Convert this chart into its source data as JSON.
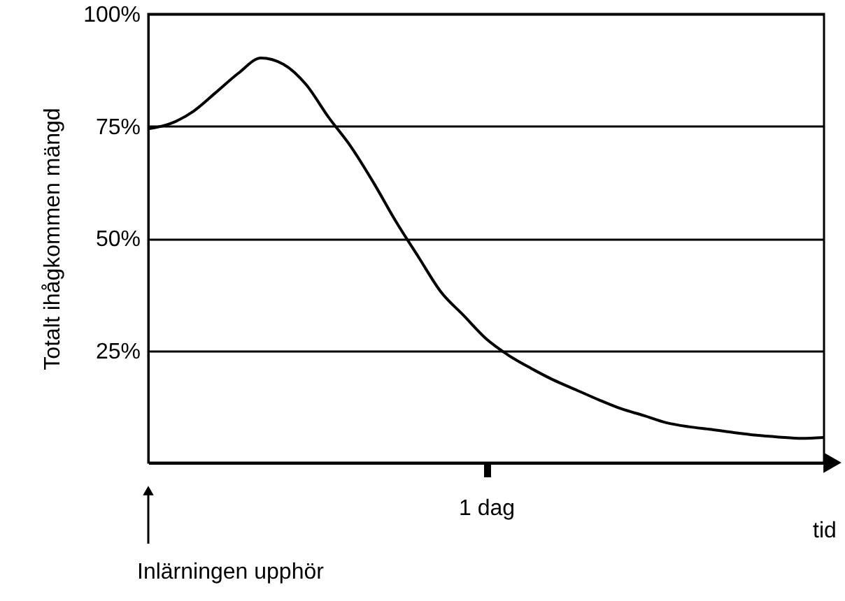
{
  "chart_data": {
    "type": "line",
    "xlabel": "tid",
    "ylabel": "Totalt ihågkommen mängd",
    "categories": [
      null,
      null,
      null,
      null,
      null,
      null,
      null,
      null,
      null,
      null,
      null,
      null,
      null,
      null,
      null,
      "1 dag",
      null,
      null,
      null,
      null,
      null,
      null,
      null,
      null,
      null,
      null,
      null,
      null,
      null,
      null,
      null
    ],
    "series": [
      {
        "color": "#000000",
        "values": [
          74.4,
          75.6,
          78.3,
          82.5,
          86.8,
          90.2,
          88.8,
          84.3,
          77,
          70.4,
          62.4,
          53.7,
          45.8,
          38,
          32.8,
          27.6,
          23.9,
          21,
          18.4,
          16.2,
          14,
          12,
          10.5,
          8.9,
          8,
          7.4,
          6.7,
          6.1,
          5.7,
          5.4,
          5.6
        ]
      }
    ],
    "ylim": [
      0,
      100
    ],
    "yticks": [
      {
        "value": 25,
        "label": "25%"
      },
      {
        "value": 50,
        "label": "50%"
      },
      {
        "value": 75,
        "label": "75%"
      },
      {
        "value": 100,
        "label": "100%"
      }
    ],
    "grid": "y",
    "marker": "none",
    "line_style": "solid",
    "annotations": [
      "Inlärningen upphör"
    ]
  }
}
